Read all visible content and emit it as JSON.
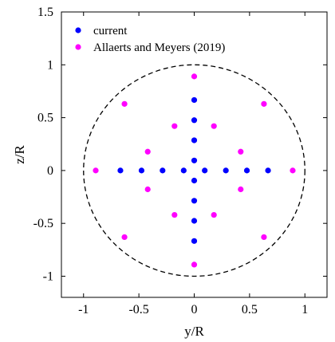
{
  "chart_data": {
    "type": "scatter",
    "xlabel": "y/R",
    "ylabel": "z/R",
    "xlim": [
      -1.2,
      1.2
    ],
    "ylim": [
      -1.2,
      1.5
    ],
    "x_ticks": [
      -1,
      -0.5,
      0,
      0.5,
      1
    ],
    "x_tick_labels": [
      "-1",
      "-0.5",
      "0",
      "0.5",
      "1"
    ],
    "y_ticks": [
      -1,
      -0.5,
      0,
      0.5,
      1,
      1.5
    ],
    "y_tick_labels": [
      "-1",
      "-0.5",
      "0",
      "0.5",
      "1",
      "1.5"
    ],
    "grid": false,
    "legend_position": "top-left",
    "reference_circle": {
      "shape": "circle",
      "center": [
        0,
        0
      ],
      "radius": 1,
      "style": "dashed",
      "color": "#000000"
    },
    "series": [
      {
        "name": "current",
        "color": "#0000ff",
        "points": [
          [
            0,
            0.667
          ],
          [
            0,
            0.476
          ],
          [
            0,
            0.286
          ],
          [
            0,
            0.095
          ],
          [
            0,
            -0.095
          ],
          [
            0,
            -0.286
          ],
          [
            0,
            -0.476
          ],
          [
            0,
            -0.667
          ],
          [
            -0.667,
            0
          ],
          [
            -0.476,
            0
          ],
          [
            -0.286,
            0
          ],
          [
            -0.095,
            0
          ],
          [
            0.095,
            0
          ],
          [
            0.286,
            0
          ],
          [
            0.476,
            0
          ],
          [
            0.667,
            0
          ]
        ]
      },
      {
        "name": "Allaerts and Meyers (2019)",
        "color": "#ff00ff",
        "points": [
          [
            0,
            0.89
          ],
          [
            0,
            -0.89
          ],
          [
            -0.89,
            0
          ],
          [
            0.89,
            0
          ],
          [
            -0.63,
            0.63
          ],
          [
            0.63,
            0.63
          ],
          [
            -0.63,
            -0.63
          ],
          [
            0.63,
            -0.63
          ],
          [
            -0.178,
            0.42
          ],
          [
            0.178,
            0.42
          ],
          [
            -0.178,
            -0.42
          ],
          [
            0.178,
            -0.42
          ],
          [
            -0.42,
            0.178
          ],
          [
            0.42,
            0.178
          ],
          [
            -0.42,
            -0.178
          ],
          [
            0.42,
            -0.178
          ]
        ]
      }
    ]
  }
}
